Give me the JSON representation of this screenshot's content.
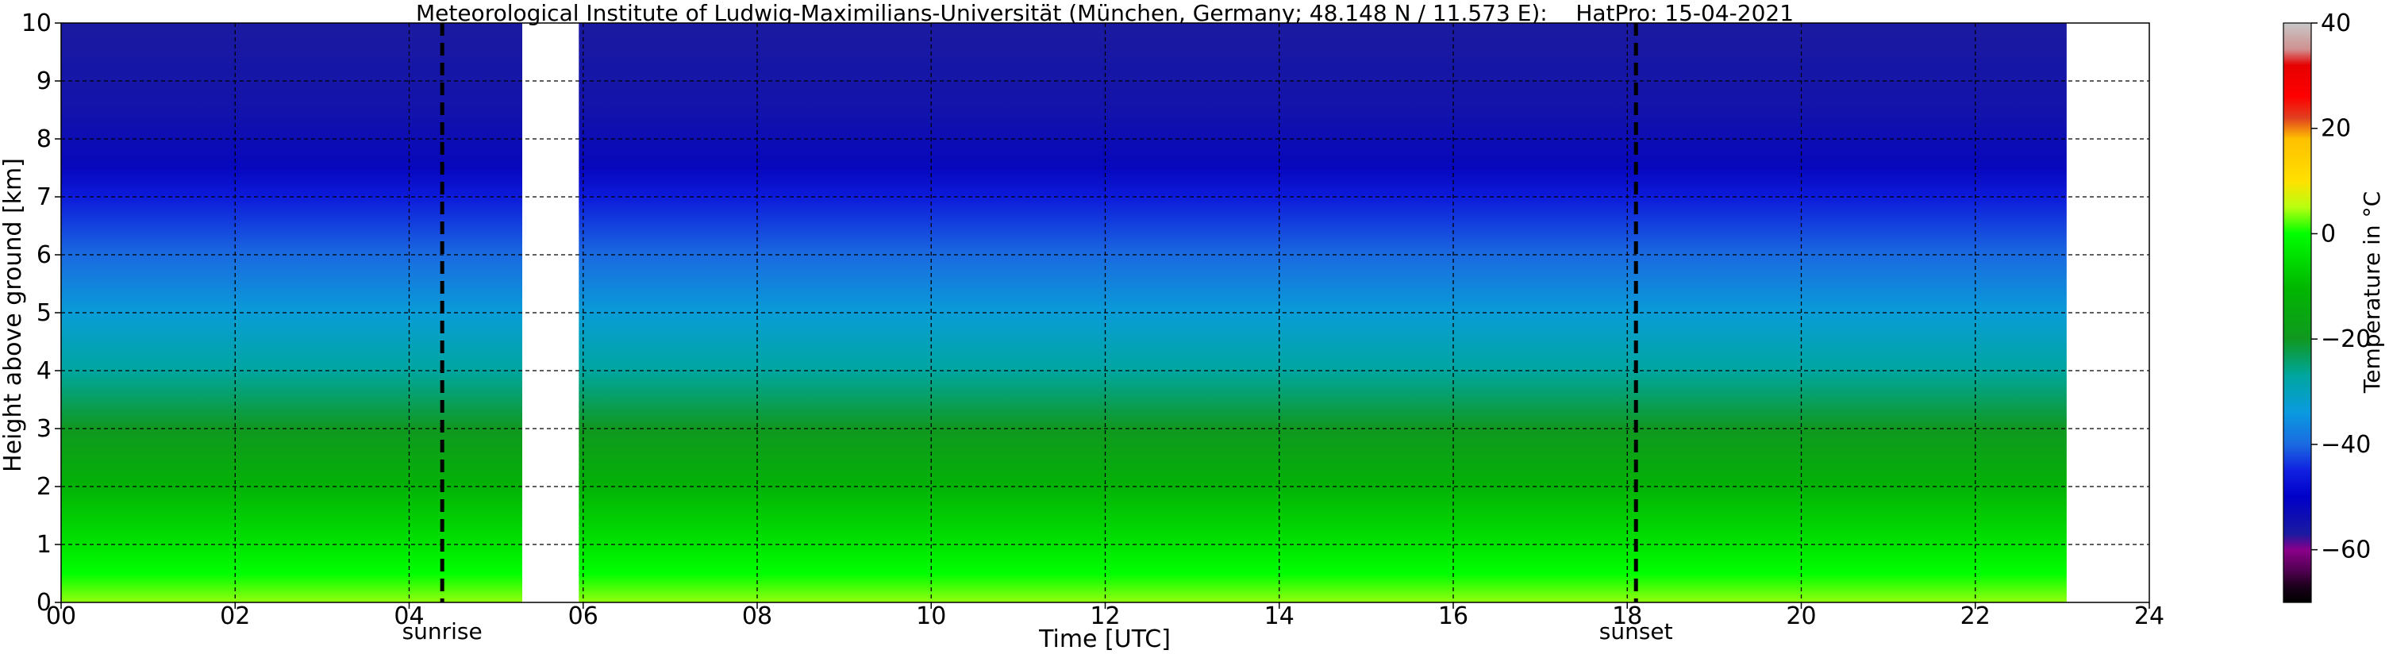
{
  "chart_data": {
    "type": "heatmap",
    "title": "Meteorological Institute of Ludwig-Maximilians-Universität (München, Germany; 48.148 N / 11.573 E):    HatPro: 15-04-2021",
    "xlabel": "Time [UTC]",
    "ylabel": "Height above ground [km]",
    "xlim": [
      0,
      24
    ],
    "ylim": [
      0,
      10
    ],
    "xticks": [
      0,
      2,
      4,
      6,
      8,
      10,
      12,
      14,
      16,
      18,
      20,
      22,
      24
    ],
    "xtick_labels": [
      "00",
      "02",
      "04",
      "06",
      "08",
      "10",
      "12",
      "14",
      "16",
      "18",
      "20",
      "22",
      "24"
    ],
    "yticks": [
      0,
      1,
      2,
      3,
      4,
      5,
      6,
      7,
      8,
      9,
      10
    ],
    "ytick_labels": [
      "0",
      "1",
      "2",
      "3",
      "4",
      "5",
      "6",
      "7",
      "8",
      "9",
      "10"
    ],
    "grid": true,
    "data_coverage": [
      [
        0,
        5.3
      ],
      [
        5.95,
        23.05
      ]
    ],
    "missing_interval": [
      5.3,
      5.95
    ],
    "temperature_profile": [
      {
        "height_km": 0.0,
        "temp_c": 4
      },
      {
        "height_km": 0.5,
        "temp_c": 0
      },
      {
        "height_km": 1.0,
        "temp_c": -4
      },
      {
        "height_km": 2.0,
        "temp_c": -12
      },
      {
        "height_km": 3.0,
        "temp_c": -20
      },
      {
        "height_km": 4.0,
        "temp_c": -27
      },
      {
        "height_km": 5.0,
        "temp_c": -33
      },
      {
        "height_km": 6.0,
        "temp_c": -40
      },
      {
        "height_km": 7.0,
        "temp_c": -46
      },
      {
        "height_km": 7.5,
        "temp_c": -52
      },
      {
        "height_km": 8.5,
        "temp_c": -55
      },
      {
        "height_km": 10.0,
        "temp_c": -57
      }
    ],
    "markers": [
      {
        "label": "sunrise",
        "x": 4.38
      },
      {
        "label": "sunset",
        "x": 18.1
      }
    ],
    "colorbar": {
      "label": "Temperature in °C",
      "range": [
        -70,
        40
      ],
      "ticks": [
        40,
        20,
        0,
        -20,
        -40,
        -60
      ],
      "tick_labels": [
        "40",
        "20",
        "0",
        "−20",
        "−40",
        "−60"
      ],
      "stops": [
        {
          "value": -70,
          "color": "#000000"
        },
        {
          "value": -67,
          "color": "#1a001a"
        },
        {
          "value": -64,
          "color": "#500050"
        },
        {
          "value": -60,
          "color": "#8a008a"
        },
        {
          "value": -57,
          "color": "#1a1aa0"
        },
        {
          "value": -50,
          "color": "#0000c8"
        },
        {
          "value": -45,
          "color": "#1020e0"
        },
        {
          "value": -40,
          "color": "#1a6ae0"
        },
        {
          "value": -34,
          "color": "#0a9ae0"
        },
        {
          "value": -27,
          "color": "#00a6a0"
        },
        {
          "value": -20,
          "color": "#109820"
        },
        {
          "value": -10,
          "color": "#00b800"
        },
        {
          "value": 0,
          "color": "#00ff00"
        },
        {
          "value": 5,
          "color": "#b8ff10"
        },
        {
          "value": 10,
          "color": "#ffe000"
        },
        {
          "value": 18,
          "color": "#ffc000"
        },
        {
          "value": 22,
          "color": "#e04020"
        },
        {
          "value": 26,
          "color": "#ff0000"
        },
        {
          "value": 32,
          "color": "#e60000"
        },
        {
          "value": 35,
          "color": "#d09090"
        },
        {
          "value": 40,
          "color": "#c8c8c8"
        }
      ]
    }
  }
}
